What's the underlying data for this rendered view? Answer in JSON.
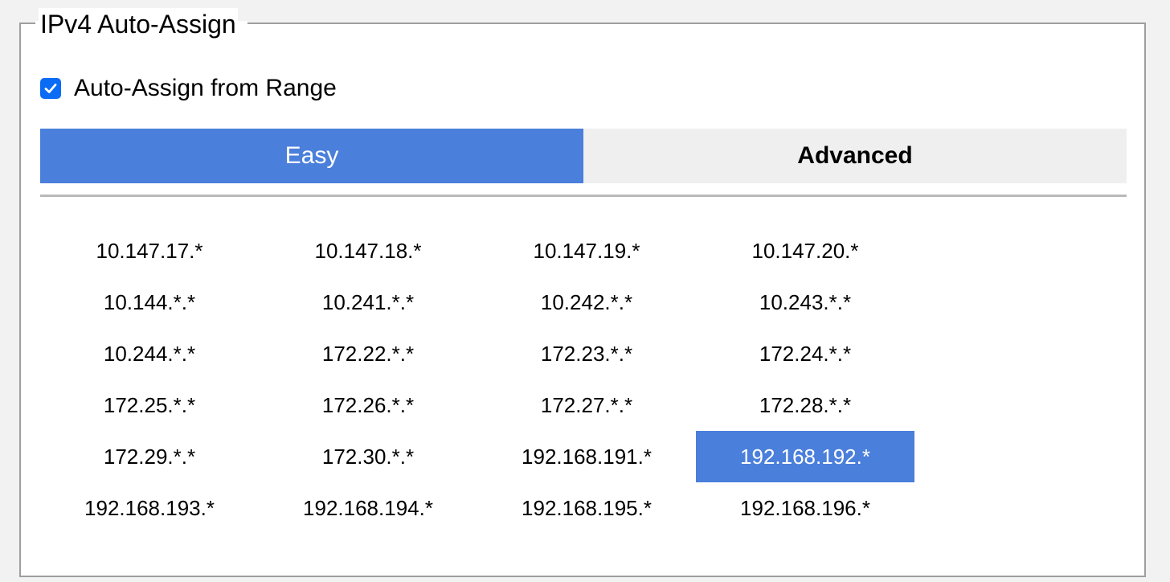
{
  "fieldset": {
    "legend": "IPv4 Auto-Assign"
  },
  "auto_assign": {
    "label": "Auto-Assign from Range",
    "checked": true
  },
  "tabs": [
    {
      "label": "Easy",
      "active": true
    },
    {
      "label": "Advanced",
      "active": false
    }
  ],
  "ranges": [
    {
      "label": "10.147.17.*",
      "selected": false
    },
    {
      "label": "10.147.18.*",
      "selected": false
    },
    {
      "label": "10.147.19.*",
      "selected": false
    },
    {
      "label": "10.147.20.*",
      "selected": false
    },
    {
      "label": "10.144.*.*",
      "selected": false
    },
    {
      "label": "10.241.*.*",
      "selected": false
    },
    {
      "label": "10.242.*.*",
      "selected": false
    },
    {
      "label": "10.243.*.*",
      "selected": false
    },
    {
      "label": "10.244.*.*",
      "selected": false
    },
    {
      "label": "172.22.*.*",
      "selected": false
    },
    {
      "label": "172.23.*.*",
      "selected": false
    },
    {
      "label": "172.24.*.*",
      "selected": false
    },
    {
      "label": "172.25.*.*",
      "selected": false
    },
    {
      "label": "172.26.*.*",
      "selected": false
    },
    {
      "label": "172.27.*.*",
      "selected": false
    },
    {
      "label": "172.28.*.*",
      "selected": false
    },
    {
      "label": "172.29.*.*",
      "selected": false
    },
    {
      "label": "172.30.*.*",
      "selected": false
    },
    {
      "label": "192.168.191.*",
      "selected": false
    },
    {
      "label": "192.168.192.*",
      "selected": true
    },
    {
      "label": "192.168.193.*",
      "selected": false
    },
    {
      "label": "192.168.194.*",
      "selected": false
    },
    {
      "label": "192.168.195.*",
      "selected": false
    },
    {
      "label": "192.168.196.*",
      "selected": false
    }
  ],
  "colors": {
    "accent": "#4a7fdb",
    "checkbox": "#0a6cf5",
    "tab_inactive": "#efefef",
    "border": "#9e9e9e"
  }
}
